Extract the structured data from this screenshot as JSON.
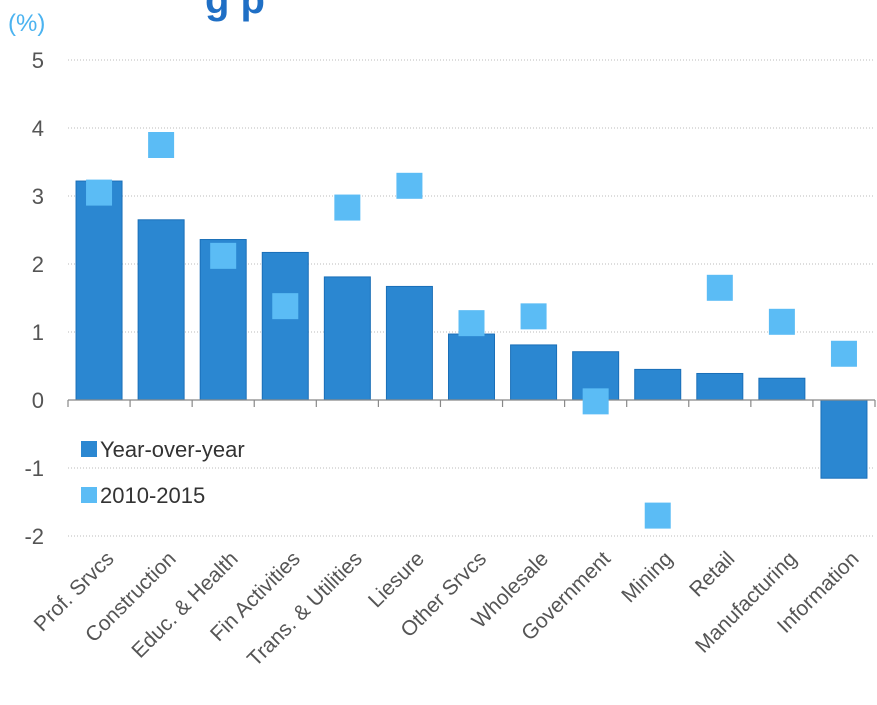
{
  "title_fragment": "g    p",
  "chart_data": {
    "type": "bar",
    "unit_label": "(%)",
    "categories": [
      "Prof. Srvcs",
      "Construction",
      "Educ. & Health",
      "Fin Activities",
      "Trans. & Utilities",
      "Liesure",
      "Other Srvcs",
      "Wholesale",
      "Government",
      "Mining",
      "Retail",
      "Manufacturing",
      "Information"
    ],
    "series": [
      {
        "name": "Year-over-year",
        "type": "bar",
        "color": "#2b87d1",
        "values": [
          3.22,
          2.65,
          2.36,
          2.17,
          1.81,
          1.67,
          0.97,
          0.81,
          0.71,
          0.45,
          0.39,
          0.32,
          -1.15
        ]
      },
      {
        "name": "2010-2015",
        "type": "marker",
        "marker": "square",
        "color": "#5bbcf5",
        "values": [
          3.05,
          3.75,
          2.12,
          1.38,
          2.83,
          3.15,
          1.13,
          1.23,
          -0.02,
          -1.7,
          1.65,
          1.15,
          0.68
        ]
      }
    ],
    "ylim": [
      -2,
      5
    ],
    "yticks": [
      -2,
      -1,
      0,
      1,
      2,
      3,
      4,
      5
    ],
    "grid": true,
    "legend": "lower-left inside plot"
  }
}
